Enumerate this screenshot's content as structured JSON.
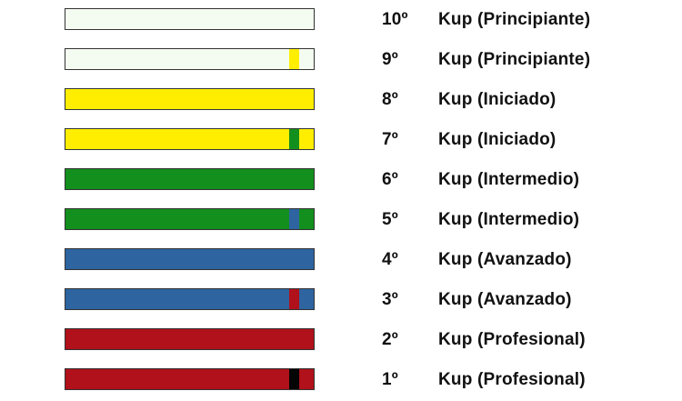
{
  "belts": [
    {
      "rank": "10º",
      "level": "Kup (Principiante)",
      "belt_color": "#f4fbf0",
      "stripe_color": null
    },
    {
      "rank": "9º",
      "level": "Kup (Principiante)",
      "belt_color": "#f4fbf0",
      "stripe_color": "#ffee00"
    },
    {
      "rank": "8º",
      "level": "Kup (Iniciado)",
      "belt_color": "#ffee00",
      "stripe_color": null
    },
    {
      "rank": "7º",
      "level": "Kup (Iniciado)",
      "belt_color": "#ffee00",
      "stripe_color": "#138f1e"
    },
    {
      "rank": "6º",
      "level": "Kup (Intermedio)",
      "belt_color": "#138f1e",
      "stripe_color": null
    },
    {
      "rank": "5º",
      "level": "Kup (Intermedio)",
      "belt_color": "#138f1e",
      "stripe_color": "#2e64a0"
    },
    {
      "rank": "4º",
      "level": "Kup (Avanzado)",
      "belt_color": "#2e64a0",
      "stripe_color": null
    },
    {
      "rank": "3º",
      "level": "Kup (Avanzado)",
      "belt_color": "#2e64a0",
      "stripe_color": "#b0111a"
    },
    {
      "rank": "2º",
      "level": "Kup (Profesional)",
      "belt_color": "#b0111a",
      "stripe_color": null
    },
    {
      "rank": "1º",
      "level": "Kup (Profesional)",
      "belt_color": "#b0111a",
      "stripe_color": "#050505"
    }
  ]
}
